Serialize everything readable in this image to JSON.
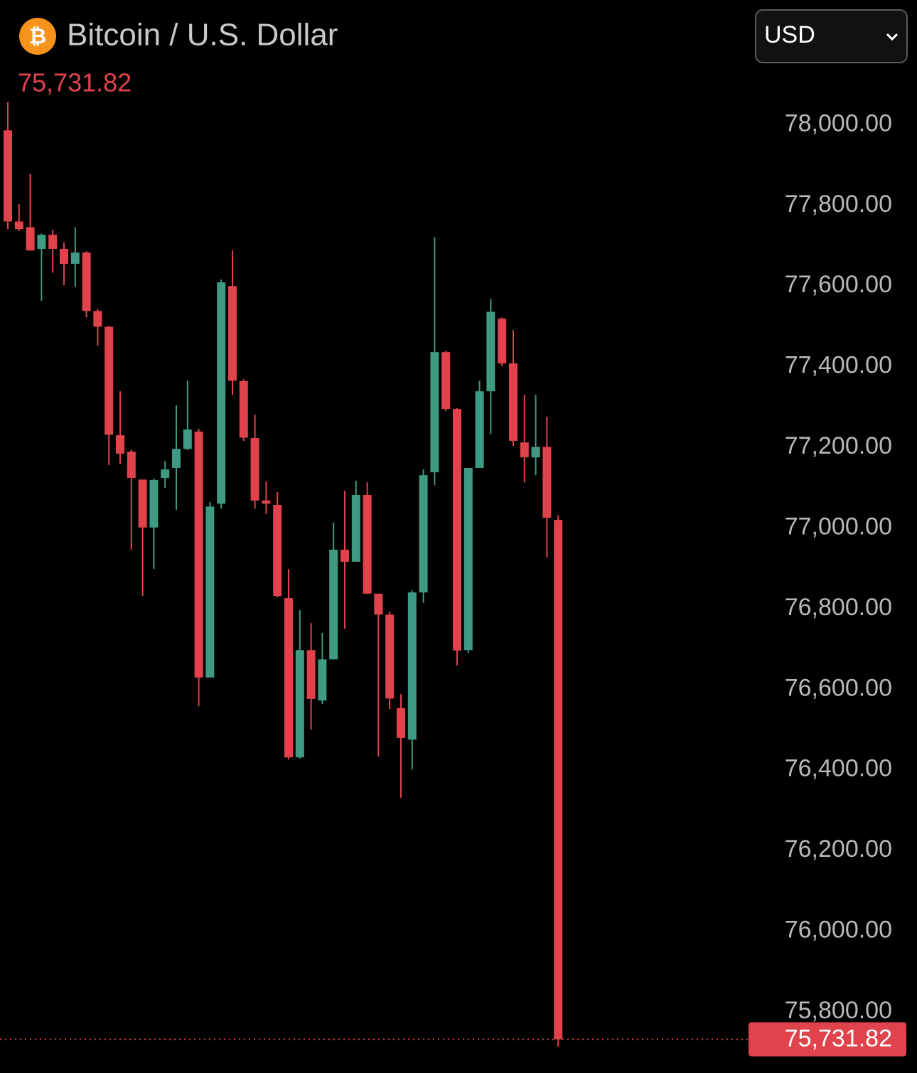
{
  "chart_data": {
    "type": "candlestick",
    "icon": "₿",
    "title": "Bitcoin / U.S. Dollar",
    "currency": "USD",
    "last_price": {
      "value": 75731.82,
      "label": "75,731.82"
    },
    "up_color": "#3f9a83",
    "down_color": "#e0434c",
    "ylim": [
      75650,
      78080
    ],
    "yticks": [
      {
        "value": 75800,
        "label": "75,800.00"
      },
      {
        "value": 76000,
        "label": "76,000.00"
      },
      {
        "value": 76200,
        "label": "76,200.00"
      },
      {
        "value": 76400,
        "label": "76,400.00"
      },
      {
        "value": 76600,
        "label": "76,600.00"
      },
      {
        "value": 76800,
        "label": "76,800.00"
      },
      {
        "value": 77000,
        "label": "77,000.00"
      },
      {
        "value": 77200,
        "label": "77,200.00"
      },
      {
        "value": 77400,
        "label": "77,400.00"
      },
      {
        "value": 77600,
        "label": "77,600.00"
      },
      {
        "value": 77800,
        "label": "77,800.00"
      },
      {
        "value": 78000,
        "label": "78,000.00"
      }
    ],
    "open": [
      77986,
      77760,
      77746,
      77692,
      77727,
      77692,
      77655,
      77683,
      77538,
      77499,
      77230,
      77189,
      77120,
      77001,
      77124,
      77149,
      77196,
      77239,
      76629,
      77060,
      77600,
      77364,
      77223,
      77068,
      77057,
      76826,
      76431,
      76697,
      76572,
      76674,
      76946,
      76916,
      77082,
      76837,
      76785,
      76553,
      76475,
      76840,
      77138,
      77436,
      77295,
      76697,
      77149,
      77339,
      77519,
      77408,
      77212,
      77175,
      77201,
      77020
    ],
    "high": [
      78056,
      77803,
      77878,
      77730,
      77739,
      77707,
      77746,
      77686,
      77543,
      77501,
      77339,
      77194,
      77120,
      77122,
      77166,
      77304,
      77365,
      77246,
      77064,
      77616,
      77688,
      77369,
      77281,
      77115,
      77089,
      76898,
      76796,
      76764,
      76740,
      77013,
      77092,
      77117,
      77113,
      76837,
      76793,
      76588,
      76845,
      77145,
      77721,
      77439,
      77297,
      77149,
      77365,
      77568,
      77522,
      77491,
      77330,
      77330,
      77276,
      77031
    ],
    "low": [
      77741,
      77736,
      77688,
      77563,
      77633,
      77602,
      77598,
      77522,
      77452,
      77156,
      77159,
      76946,
      76831,
      76898,
      77099,
      77045,
      77193,
      76558,
      76629,
      77048,
      77330,
      77216,
      77048,
      77034,
      76828,
      76426,
      76428,
      76500,
      76563,
      76674,
      76750,
      76916,
      76837,
      76433,
      76551,
      76331,
      76401,
      76814,
      77106,
      77290,
      76659,
      76690,
      77149,
      77233,
      77401,
      77203,
      77113,
      77131,
      76927,
      75714
    ],
    "close": [
      77760,
      77741,
      77688,
      77727,
      77692,
      77655,
      77683,
      77538,
      77499,
      77231,
      77184,
      77124,
      77001,
      77119,
      77145,
      77196,
      77244,
      76629,
      77053,
      77609,
      77365,
      77224,
      77068,
      77060,
      76831,
      76431,
      76697,
      76576,
      76674,
      76946,
      76916,
      77082,
      76837,
      76785,
      76577,
      76479,
      76840,
      77131,
      77436,
      77295,
      76696,
      77149,
      77339,
      77536,
      77408,
      77216,
      77175,
      77201,
      77025,
      75731.82
    ]
  }
}
